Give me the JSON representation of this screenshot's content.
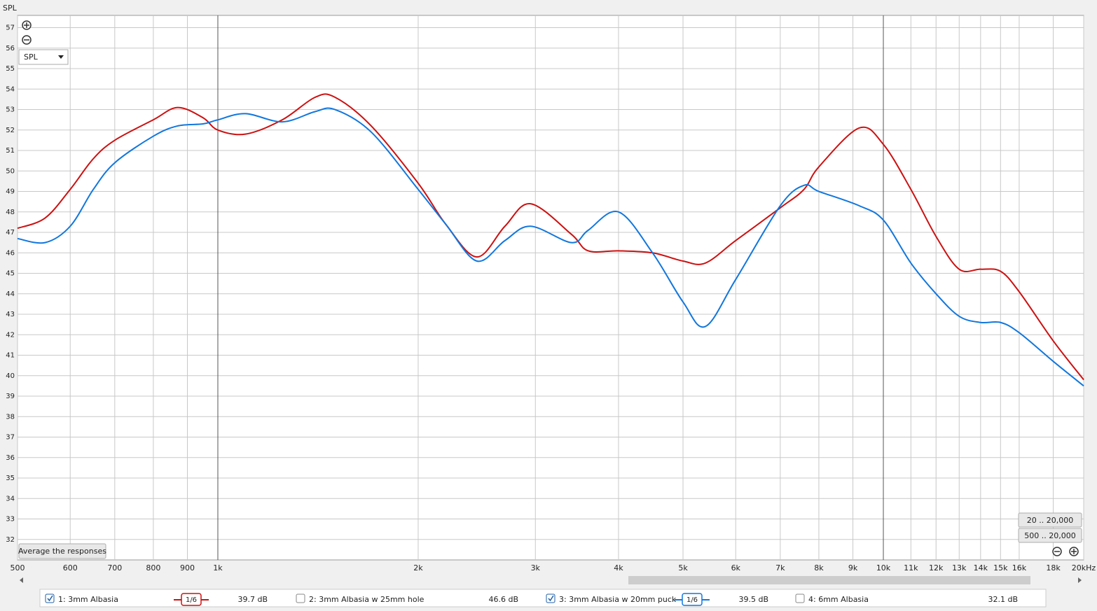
{
  "chart_data": {
    "type": "line",
    "y_label": "SPL",
    "x_log": true,
    "grid": true,
    "xlim": [
      500,
      20000
    ],
    "ylim": [
      31,
      57.6
    ],
    "xticks": [
      500,
      600,
      700,
      800,
      900,
      {
        "value": 1000,
        "label": "1k"
      },
      {
        "value": 2000,
        "label": "2k"
      },
      {
        "value": 3000,
        "label": "3k"
      },
      {
        "value": 4000,
        "label": "4k"
      },
      {
        "value": 5000,
        "label": "5k"
      },
      {
        "value": 6000,
        "label": "6k"
      },
      {
        "value": 7000,
        "label": "7k"
      },
      {
        "value": 8000,
        "label": "8k"
      },
      {
        "value": 9000,
        "label": "9k"
      },
      {
        "value": 10000,
        "label": "10k"
      },
      {
        "value": 11000,
        "label": "11k"
      },
      {
        "value": 12000,
        "label": "12k"
      },
      {
        "value": 13000,
        "label": "13k"
      },
      {
        "value": 14000,
        "label": "14k"
      },
      {
        "value": 15000,
        "label": "15k"
      },
      {
        "value": 16000,
        "label": "16k"
      },
      {
        "value": 18000,
        "label": "18k"
      },
      {
        "value": 20000,
        "label": "20kHz"
      }
    ],
    "yticks": [
      32,
      33,
      34,
      35,
      36,
      37,
      38,
      39,
      40,
      41,
      42,
      43,
      44,
      45,
      46,
      47,
      48,
      49,
      50,
      51,
      52,
      53,
      54,
      55,
      56,
      57
    ],
    "x": [
      500,
      550,
      600,
      650,
      700,
      800,
      870,
      950,
      1000,
      1100,
      1250,
      1400,
      1500,
      1700,
      2000,
      2200,
      2450,
      2700,
      2950,
      3400,
      3600,
      4000,
      4500,
      5000,
      5400,
      6000,
      7000,
      7600,
      8000,
      9200,
      10000,
      11000,
      12000,
      13000,
      14000,
      15000,
      16000,
      18000,
      20000
    ],
    "series": [
      {
        "name": "1: 3mm Albasia",
        "color": "#cc1111",
        "smoothing": "1/6",
        "level": "39.7 dB",
        "values": [
          47.2,
          47.7,
          49.1,
          50.6,
          51.5,
          52.5,
          53.1,
          52.6,
          52.0,
          51.8,
          52.5,
          53.6,
          53.6,
          52.2,
          49.4,
          47.4,
          45.8,
          47.3,
          48.4,
          46.9,
          46.1,
          46.1,
          46.0,
          45.6,
          45.5,
          46.6,
          48.2,
          49.1,
          50.2,
          52.1,
          51.3,
          49.1,
          46.8,
          45.2,
          45.2,
          45.1,
          44.1,
          41.7,
          39.8
        ]
      },
      {
        "name": "3: 3mm Albasia w 20mm puck",
        "color": "#1177dd",
        "smoothing": "1/6",
        "level": "39.5 dB",
        "values": [
          46.7,
          46.5,
          47.3,
          49.1,
          50.4,
          51.7,
          52.2,
          52.3,
          52.5,
          52.8,
          52.4,
          52.9,
          53.0,
          51.9,
          49.1,
          47.4,
          45.6,
          46.6,
          47.3,
          46.5,
          47.1,
          48.0,
          46.0,
          43.6,
          42.4,
          44.7,
          48.3,
          49.3,
          49.0,
          48.3,
          47.6,
          45.5,
          44.0,
          42.9,
          42.6,
          42.6,
          42.1,
          40.7,
          39.5
        ]
      }
    ]
  },
  "ui": {
    "dropdown": "SPL",
    "average_button": "Average the responses",
    "range_buttons": [
      "20 .. 20,000",
      "500 .. 20,000"
    ],
    "hidden_traces": [
      {
        "name": "2: 3mm Albasia w 25mm hole",
        "color": "#2e8b2e",
        "level": "46.6 dB"
      },
      {
        "name": "4: 6mm Albasia",
        "color": "#e08a1e",
        "level": "32.1 dB"
      }
    ]
  }
}
